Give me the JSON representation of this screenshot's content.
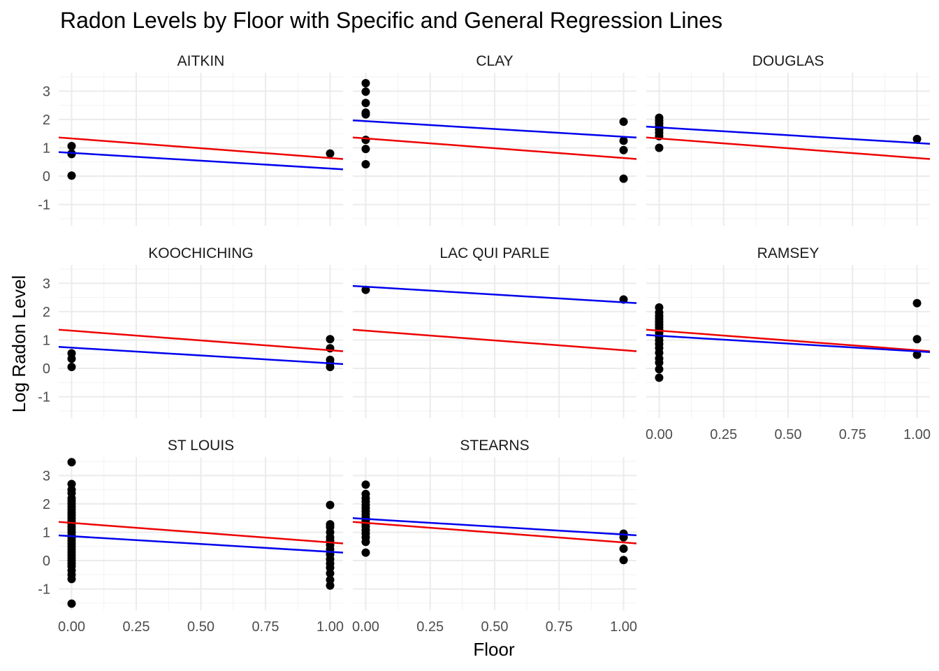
{
  "chart_data": {
    "type": "scatter",
    "title": "Radon Levels by Floor with Specific and General Regression Lines",
    "xlabel": "Floor",
    "ylabel": "Log Radon Level",
    "xlim": [
      -0.05,
      1.05
    ],
    "ylim": [
      -1.75,
      3.65
    ],
    "x_ticks": [
      0,
      0.25,
      0.5,
      0.75,
      1.0
    ],
    "x_tick_labels": [
      "0.00",
      "0.25",
      "0.50",
      "0.75",
      "1.00"
    ],
    "y_ticks": [
      -1,
      0,
      1,
      2,
      3
    ],
    "y_tick_labels": [
      "-1",
      "0",
      "1",
      "2",
      "3"
    ],
    "grid": true,
    "colors": {
      "points": "#000000",
      "specific": "#0000ee",
      "general": "#ee0000"
    },
    "general_line": {
      "intercept": 1.33,
      "slope": -0.69
    },
    "facets": [
      {
        "county": "AITKIN",
        "specific_line": {
          "intercept": 0.82,
          "slope": -0.55
        },
        "points": [
          [
            0,
            1.06
          ],
          [
            0,
            0.8
          ],
          [
            0,
            0.78
          ],
          [
            0,
            0.02
          ],
          [
            1,
            0.8
          ]
        ]
      },
      {
        "county": "CLAY",
        "specific_line": {
          "intercept": 1.94,
          "slope": -0.55
        },
        "points": [
          [
            0,
            3.28
          ],
          [
            0,
            2.98
          ],
          [
            0,
            2.58
          ],
          [
            0,
            2.24
          ],
          [
            0,
            2.18
          ],
          [
            0,
            1.28
          ],
          [
            0,
            0.96
          ],
          [
            0,
            0.42
          ],
          [
            1,
            1.92
          ],
          [
            1,
            1.25
          ],
          [
            1,
            0.92
          ],
          [
            1,
            -0.09
          ]
        ]
      },
      {
        "county": "DOUGLAS",
        "specific_line": {
          "intercept": 1.72,
          "slope": -0.55
        },
        "points": [
          [
            0,
            2.06
          ],
          [
            0,
            1.96
          ],
          [
            0,
            1.86
          ],
          [
            0,
            1.75
          ],
          [
            0,
            1.64
          ],
          [
            0,
            1.53
          ],
          [
            0,
            1.41
          ],
          [
            0,
            1.0
          ],
          [
            1,
            1.31
          ]
        ]
      },
      {
        "county": "KOOCHICHING",
        "specific_line": {
          "intercept": 0.73,
          "slope": -0.55
        },
        "points": [
          [
            0,
            0.53
          ],
          [
            0,
            0.34
          ],
          [
            0,
            0.05
          ],
          [
            1,
            1.03
          ],
          [
            1,
            0.71
          ],
          [
            1,
            0.3
          ],
          [
            1,
            0.18
          ],
          [
            1,
            0.05
          ]
        ]
      },
      {
        "county": "LAC QUI PARLE",
        "specific_line": {
          "intercept": 2.88,
          "slope": -0.55
        },
        "points": [
          [
            0,
            2.77
          ],
          [
            1,
            2.43
          ]
        ]
      },
      {
        "county": "RAMSEY",
        "specific_line": {
          "intercept": 1.15,
          "slope": -0.55
        },
        "points": [
          [
            0,
            2.15
          ],
          [
            0,
            1.97
          ],
          [
            0,
            1.85
          ],
          [
            0,
            1.75
          ],
          [
            0,
            1.65
          ],
          [
            0,
            1.55
          ],
          [
            0,
            1.45
          ],
          [
            0,
            1.36
          ],
          [
            0,
            1.25
          ],
          [
            0,
            1.12
          ],
          [
            0,
            0.99
          ],
          [
            0,
            0.86
          ],
          [
            0,
            0.72
          ],
          [
            0,
            0.55
          ],
          [
            0,
            0.35
          ],
          [
            0,
            0.2
          ],
          [
            0,
            -0.03
          ],
          [
            0,
            -0.33
          ],
          [
            1,
            2.3
          ],
          [
            1,
            1.03
          ],
          [
            1,
            0.48
          ]
        ]
      },
      {
        "county": "ST LOUIS",
        "specific_line": {
          "intercept": 0.86,
          "slope": -0.55
        },
        "points": [
          [
            0,
            3.47
          ],
          [
            0,
            2.7
          ],
          [
            0,
            2.5
          ],
          [
            0,
            2.38
          ],
          [
            0,
            2.2
          ],
          [
            0,
            2.1
          ],
          [
            0,
            2.0
          ],
          [
            0,
            1.9
          ],
          [
            0,
            1.8
          ],
          [
            0,
            1.7
          ],
          [
            0,
            1.6
          ],
          [
            0,
            1.5
          ],
          [
            0,
            1.4
          ],
          [
            0,
            1.3
          ],
          [
            0,
            1.2
          ],
          [
            0,
            1.1
          ],
          [
            0,
            1.0
          ],
          [
            0,
            0.9
          ],
          [
            0,
            0.8
          ],
          [
            0,
            0.7
          ],
          [
            0,
            0.6
          ],
          [
            0,
            0.5
          ],
          [
            0,
            0.4
          ],
          [
            0,
            0.3
          ],
          [
            0,
            0.2
          ],
          [
            0,
            0.1
          ],
          [
            0,
            0.0
          ],
          [
            0,
            -0.1
          ],
          [
            0,
            -0.2
          ],
          [
            0,
            -0.35
          ],
          [
            0,
            -0.5
          ],
          [
            0,
            -0.65
          ],
          [
            0,
            -1.52
          ],
          [
            1,
            1.96
          ],
          [
            1,
            1.28
          ],
          [
            1,
            1.18
          ],
          [
            1,
            1.0
          ],
          [
            1,
            0.82
          ],
          [
            1,
            0.7
          ],
          [
            1,
            0.55
          ],
          [
            1,
            0.4
          ],
          [
            1,
            0.22
          ],
          [
            1,
            0.05
          ],
          [
            1,
            -0.1
          ],
          [
            1,
            -0.25
          ],
          [
            1,
            -0.45
          ],
          [
            1,
            -0.68
          ],
          [
            1,
            -0.88
          ]
        ]
      },
      {
        "county": "STEARNS",
        "specific_line": {
          "intercept": 1.47,
          "slope": -0.55
        },
        "points": [
          [
            0,
            2.68
          ],
          [
            0,
            2.35
          ],
          [
            0,
            2.2
          ],
          [
            0,
            2.08
          ],
          [
            0,
            1.96
          ],
          [
            0,
            1.85
          ],
          [
            0,
            1.74
          ],
          [
            0,
            1.63
          ],
          [
            0,
            1.52
          ],
          [
            0,
            1.41
          ],
          [
            0,
            1.3
          ],
          [
            0,
            1.2
          ],
          [
            0,
            1.08
          ],
          [
            0,
            0.96
          ],
          [
            0,
            0.82
          ],
          [
            0,
            0.66
          ],
          [
            0,
            0.28
          ],
          [
            1,
            0.95
          ],
          [
            1,
            0.82
          ],
          [
            1,
            0.42
          ],
          [
            1,
            0.02
          ]
        ]
      }
    ]
  }
}
